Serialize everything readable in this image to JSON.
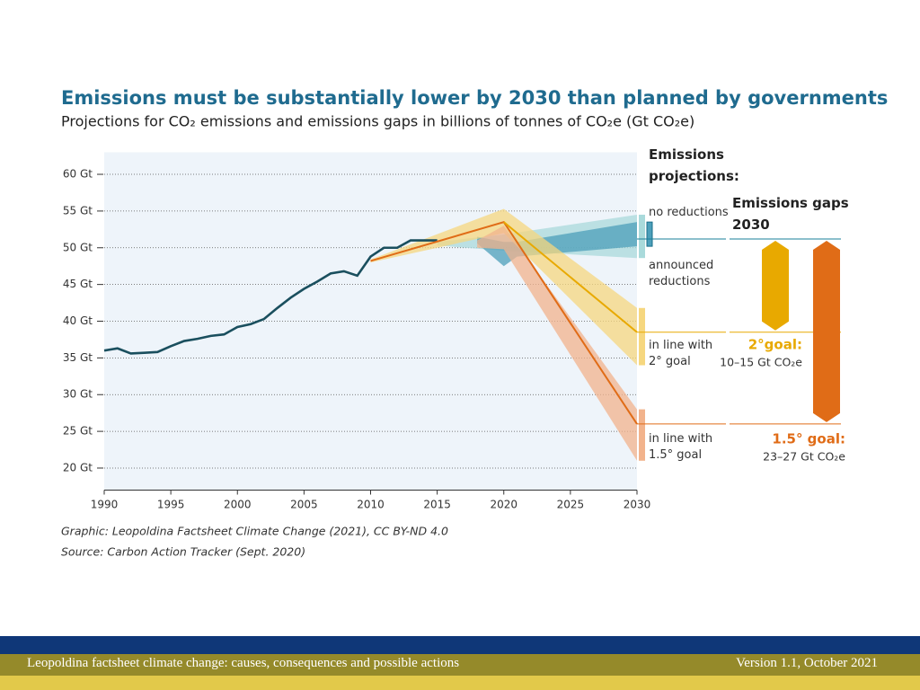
{
  "chart_data": {
    "type": "line",
    "title": "Emissions must be substantially lower by 2030 than planned by governments",
    "subtitle": "Projections for CO₂ emissions and emissions gaps in billions of tonnes of CO₂e (Gt CO₂e)",
    "xlim": [
      1990,
      2030
    ],
    "xticks": [
      1990,
      1995,
      2000,
      2005,
      2010,
      2015,
      2020,
      2025,
      2030
    ],
    "ylim": [
      17,
      63
    ],
    "yticks": [
      {
        "value": 20,
        "label": "20 Gt"
      },
      {
        "value": 25,
        "label": "25 Gt"
      },
      {
        "value": 30,
        "label": "30 Gt"
      },
      {
        "value": 35,
        "label": "35 Gt"
      },
      {
        "value": 40,
        "label": "40 Gt"
      },
      {
        "value": 45,
        "label": "45 Gt"
      },
      {
        "value": 50,
        "label": "50 Gt"
      },
      {
        "value": 55,
        "label": "55 Gt"
      },
      {
        "value": 60,
        "label": "60 Gt"
      }
    ],
    "grid": true,
    "projections_heading": "Emissions projections:",
    "gaps_heading": "Emissions gaps 2030",
    "bands": [
      {
        "name": "no reductions",
        "color": "#a9dadb",
        "x": [
          2015,
          2020,
          2030
        ],
        "lower": [
          50.3,
          49.6,
          48.6
        ],
        "upper": [
          50.8,
          51.8,
          54.5
        ]
      },
      {
        "name": "announced reductions",
        "color": "#4c9fba",
        "x": [
          2018,
          2020,
          2021,
          2030
        ],
        "lower": [
          50.6,
          47.5,
          48.8,
          50.2
        ],
        "upper": [
          51.5,
          50.8,
          50.8,
          53.5
        ]
      },
      {
        "name": "in line with 2° goal",
        "color": "#f6d77f",
        "x": [
          2010,
          2020,
          2030
        ],
        "lower": [
          48,
          52,
          34
        ],
        "upper": [
          48.4,
          55.3,
          41.8
        ]
      },
      {
        "name": "in line with 1.5° goal",
        "color": "#f2b38c",
        "x": [
          2018,
          2020,
          2030
        ],
        "lower": [
          50,
          49.8,
          21
        ],
        "upper": [
          51,
          53,
          28
        ]
      }
    ],
    "series": [
      {
        "color": "#1a4f5e",
        "x": [
          1990,
          1991,
          1992,
          1993,
          1994,
          1995,
          1996,
          1997,
          1998,
          1999,
          2000,
          2001,
          2002,
          2003,
          2004,
          2005,
          2006,
          2007,
          2008,
          2009,
          2010,
          2011,
          2012,
          2013,
          2014,
          2015
        ],
        "values": [
          36.0,
          36.3,
          35.6,
          35.7,
          35.8,
          36.6,
          37.3,
          37.6,
          38.0,
          38.2,
          39.2,
          39.6,
          40.3,
          41.8,
          43.2,
          44.4,
          45.4,
          46.5,
          46.8,
          46.2,
          48.8,
          50.0,
          50.0,
          51.0,
          51.0,
          51.0
        ]
      },
      {
        "color": "#e06c17",
        "x": [
          2010,
          2020,
          2030
        ],
        "values": [
          48.2,
          53.5,
          26
        ]
      },
      {
        "color": "#e8a900",
        "x": [
          2020,
          2030
        ],
        "values": [
          53.5,
          38.5
        ]
      }
    ],
    "gaps": [
      {
        "name": "2°goal:",
        "range": "10–15 Gt CO₂e",
        "color": "#e8a900",
        "values": [
          51.2,
          38.5
        ]
      },
      {
        "name": "1.5° goal:",
        "range": "23–27 Gt CO₂e",
        "color": "#e06c17",
        "values": [
          51.2,
          26
        ]
      }
    ]
  },
  "credits": [
    "Graphic: Leopoldina Factsheet Climate Change (2021), CC BY-ND 4.0",
    "Source: Carbon Action Tracker (Sept. 2020)"
  ],
  "footer": {
    "left": "Leopoldina factsheet climate change: causes, consequences and possible actions",
    "right": "Version 1.1, October 2021"
  }
}
